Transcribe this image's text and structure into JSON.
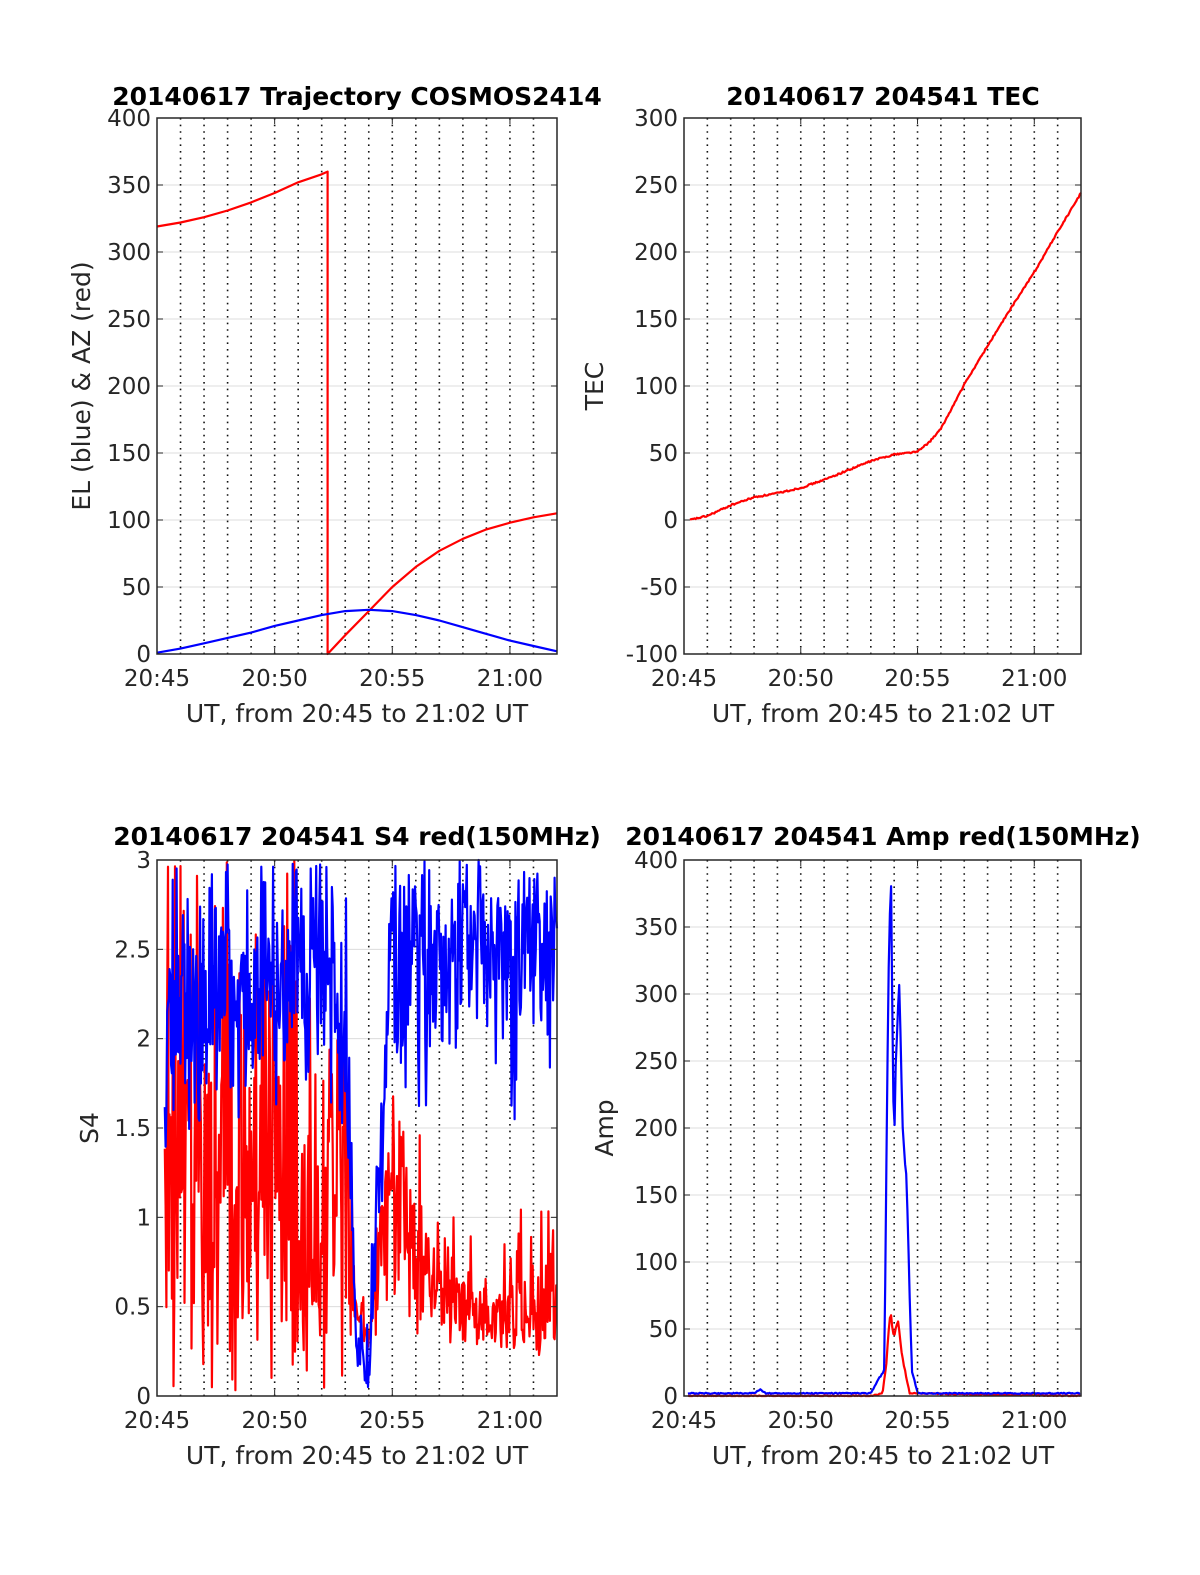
{
  "chart_data": [
    {
      "id": "p1",
      "type": "line",
      "title": "20140617 Trajectory COSMOS2414",
      "xlabel": "UT, from 20:45 to 21:02 UT",
      "ylabel": "EL (blue) & AZ (red)",
      "xlim": [
        "20:45",
        "21:02"
      ],
      "ylim": [
        0,
        400
      ],
      "xticks": [
        "20:45",
        "20:50",
        "20:55",
        "21:00"
      ],
      "yticks": [
        0,
        50,
        100,
        150,
        200,
        250,
        300,
        350,
        400
      ],
      "grid": true,
      "series": [
        {
          "color": "#ff0000",
          "x": [
            "20:45",
            "20:46",
            "20:47",
            "20:48",
            "20:49",
            "20:50",
            "20:51",
            "20:52",
            "20:52:15",
            "20:52:15",
            "20:53",
            "20:54",
            "20:55",
            "20:56",
            "20:57",
            "20:58",
            "20:59",
            "21:00",
            "21:01",
            "21:02"
          ],
          "y": [
            319,
            322,
            326,
            331,
            337,
            344,
            352,
            358,
            360,
            0,
            14,
            32,
            50,
            65,
            77,
            86,
            93,
            98,
            102,
            105
          ]
        },
        {
          "color": "#0000ff",
          "x": [
            "20:45",
            "20:46",
            "20:47",
            "20:48",
            "20:49",
            "20:50",
            "20:51",
            "20:52",
            "20:53",
            "20:54",
            "20:55",
            "20:56",
            "20:57",
            "20:58",
            "20:59",
            "21:00",
            "21:01",
            "21:02"
          ],
          "y": [
            1,
            4,
            8,
            12,
            16,
            21,
            25,
            29,
            32,
            33,
            32,
            29,
            25,
            20,
            15,
            10,
            6,
            2
          ]
        }
      ]
    },
    {
      "id": "p2",
      "type": "line",
      "title": "20140617 204541 TEC",
      "xlabel": "UT, from 20:45 to 21:02 UT",
      "ylabel": "TEC",
      "xlim": [
        "20:45",
        "21:02"
      ],
      "ylim": [
        -100,
        300
      ],
      "xticks": [
        "20:45",
        "20:50",
        "20:55",
        "21:00"
      ],
      "yticks": [
        -100,
        -50,
        0,
        50,
        100,
        150,
        200,
        250,
        300
      ],
      "grid": true,
      "series": [
        {
          "color": "#ff0000",
          "x": [
            "20:45:15",
            "20:46",
            "20:47",
            "20:48",
            "20:49",
            "20:50",
            "20:51",
            "20:52",
            "20:53",
            "20:54",
            "20:55",
            "20:55:30",
            "20:56",
            "20:57",
            "20:58",
            "20:59",
            "21:00",
            "21:01",
            "21:02"
          ],
          "y": [
            0,
            3,
            11,
            17,
            20,
            24,
            30,
            37,
            44,
            49,
            51,
            58,
            68,
            101,
            130,
            158,
            185,
            215,
            244
          ]
        }
      ]
    },
    {
      "id": "p3",
      "type": "line",
      "title": "20140617 204541 S4 red(150MHz)",
      "xlabel": "UT, from 20:45 to 21:02 UT",
      "ylabel": "S4",
      "xlim": [
        "20:45",
        "21:02"
      ],
      "ylim": [
        0,
        3
      ],
      "xticks": [
        "20:45",
        "20:50",
        "20:55",
        "21:00"
      ],
      "yticks": [
        0,
        0.5,
        1,
        1.5,
        2,
        2.5,
        3
      ],
      "grid": true,
      "series": [
        {
          "color": "#ff0000",
          "x": [
            "20:45:20",
            "20:46",
            "20:47",
            "20:48",
            "20:49",
            "20:50",
            "20:51",
            "20:52",
            "20:53",
            "20:53:30",
            "20:54",
            "20:55",
            "20:56",
            "20:57",
            "20:58",
            "20:59",
            "21:00",
            "21:01",
            "21:02"
          ],
          "y": [
            1.2,
            1.3,
            1.2,
            1.3,
            1.1,
            1.3,
            1.0,
            1.1,
            1.0,
            0.5,
            0.3,
            1.3,
            0.8,
            0.6,
            0.5,
            0.4,
            0.45,
            0.45,
            0.45
          ],
          "y_low": [
            0,
            0,
            0,
            0,
            0,
            0,
            0,
            0,
            0,
            0.35,
            0.25,
            0.4,
            0.35,
            0.3,
            0.3,
            0.3,
            0.3,
            0.3,
            0.25
          ],
          "y_high": [
            3,
            3,
            3,
            3,
            3,
            3,
            3,
            2.0,
            2.0,
            0.65,
            0.6,
            1.8,
            1.6,
            1.1,
            1.0,
            0.9,
            1.0,
            1.2,
            1.1
          ]
        },
        {
          "color": "#0000ff",
          "x": [
            "20:45:20",
            "20:46",
            "20:47",
            "20:48",
            "20:49",
            "20:50",
            "20:51",
            "20:52",
            "20:53",
            "20:53:30",
            "20:54",
            "20:55",
            "20:56",
            "20:57",
            "20:58",
            "20:59",
            "21:00",
            "21:01",
            "21:02"
          ],
          "y": [
            2.0,
            2.2,
            2.1,
            2.3,
            2.2,
            2.3,
            2.4,
            2.5,
            2.0,
            0.2,
            0.15,
            2.6,
            2.5,
            2.3,
            2.6,
            2.5,
            2.4,
            2.5,
            2.5
          ],
          "y_low": [
            1.3,
            1.5,
            1.3,
            1.5,
            1.6,
            1.6,
            1.6,
            1.7,
            1.5,
            0.15,
            0.12,
            1.8,
            1.6,
            1.3,
            2.0,
            1.9,
            1.5,
            1.7,
            1.6
          ],
          "y_high": [
            3,
            3,
            3,
            3,
            3,
            3,
            3,
            3,
            3,
            0.4,
            0.6,
            3,
            3,
            3,
            3,
            3,
            3,
            3,
            3
          ]
        }
      ]
    },
    {
      "id": "p4",
      "type": "line",
      "title": "20140617 204541 Amp red(150MHz)",
      "xlabel": "UT, from 20:45 to 21:02 UT",
      "ylabel": "Amp",
      "xlim": [
        "20:45",
        "21:02"
      ],
      "ylim": [
        0,
        400
      ],
      "xticks": [
        "20:45",
        "20:50",
        "20:55",
        "21:00"
      ],
      "yticks": [
        0,
        50,
        100,
        150,
        200,
        250,
        300,
        350,
        400
      ],
      "grid": true,
      "series": [
        {
          "color": "#ff0000",
          "x": [
            "20:45:10",
            "20:53",
            "20:53:30",
            "20:53:40",
            "20:53:50",
            "20:54",
            "20:54:10",
            "20:54:20",
            "20:54:40",
            "21:02"
          ],
          "y": [
            0,
            0,
            2,
            25,
            62,
            45,
            55,
            30,
            2,
            0
          ]
        },
        {
          "color": "#0000ff",
          "x": [
            "20:45:10",
            "20:48",
            "20:48:15",
            "20:48:30",
            "20:53",
            "20:53:35",
            "20:53:45",
            "20:53:52",
            "20:54",
            "20:54:08",
            "20:54:15",
            "20:54:22",
            "20:54:32",
            "20:54:45",
            "20:55",
            "21:02"
          ],
          "y": [
            2,
            2,
            5,
            2,
            2,
            20,
            320,
            360,
            180,
            290,
            300,
            200,
            160,
            20,
            2,
            2
          ]
        }
      ]
    }
  ]
}
